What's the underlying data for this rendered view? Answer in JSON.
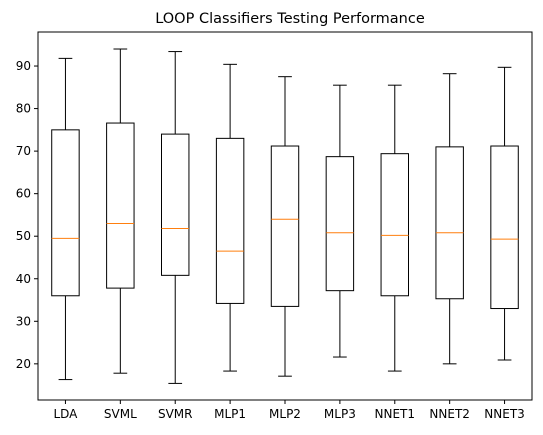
{
  "chart_data": {
    "type": "box",
    "title": "LOOP Classifiers Testing Performance",
    "xlabel": "",
    "ylabel": "",
    "categories": [
      "LDA",
      "SVML",
      "SVMR",
      "MLP1",
      "MLP2",
      "MLP3",
      "NNET1",
      "NNET2",
      "NNET3"
    ],
    "boxes": [
      {
        "label": "LDA",
        "whisker_low": 16.3,
        "q1": 36.0,
        "median": 49.5,
        "q3": 75.0,
        "whisker_high": 91.8
      },
      {
        "label": "SVML",
        "whisker_low": 17.8,
        "q1": 37.8,
        "median": 53.0,
        "q3": 76.6,
        "whisker_high": 94.0
      },
      {
        "label": "SVMR",
        "whisker_low": 15.4,
        "q1": 40.8,
        "median": 51.8,
        "q3": 74.0,
        "whisker_high": 93.4
      },
      {
        "label": "MLP1",
        "whisker_low": 18.3,
        "q1": 34.2,
        "median": 46.5,
        "q3": 73.0,
        "whisker_high": 90.4
      },
      {
        "label": "MLP2",
        "whisker_low": 17.1,
        "q1": 33.5,
        "median": 54.0,
        "q3": 71.2,
        "whisker_high": 87.5
      },
      {
        "label": "MLP3",
        "whisker_low": 21.6,
        "q1": 37.2,
        "median": 50.8,
        "q3": 68.7,
        "whisker_high": 85.5
      },
      {
        "label": "NNET1",
        "whisker_low": 18.3,
        "q1": 36.0,
        "median": 50.2,
        "q3": 69.4,
        "whisker_high": 85.5
      },
      {
        "label": "NNET2",
        "whisker_low": 20.0,
        "q1": 35.3,
        "median": 50.8,
        "q3": 71.0,
        "whisker_high": 88.2
      },
      {
        "label": "NNET3",
        "whisker_low": 20.9,
        "q1": 33.0,
        "median": 49.3,
        "q3": 71.2,
        "whisker_high": 89.7
      }
    ],
    "y_ticks": [
      20,
      30,
      40,
      50,
      60,
      70,
      80,
      90
    ],
    "ylim": [
      11.5,
      98.0
    ],
    "grid": false,
    "colors": {
      "box": "#000000",
      "whisker": "#000000",
      "median": "#ff7f0e",
      "background": "#ffffff"
    }
  }
}
